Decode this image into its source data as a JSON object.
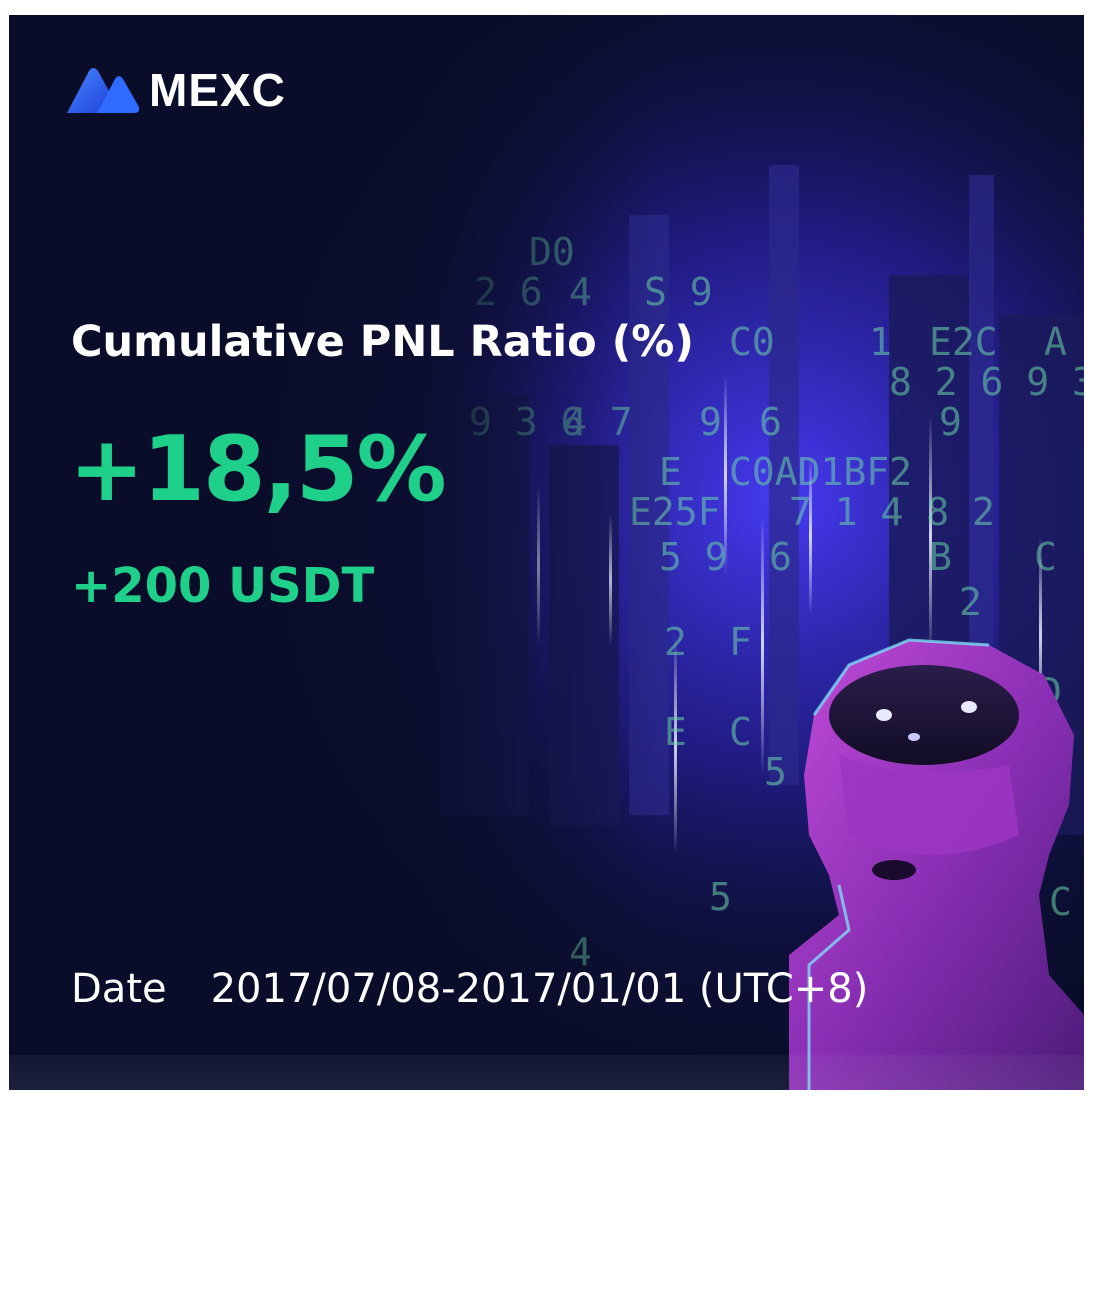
{
  "brand": {
    "name": "MEXC",
    "logo_icon": "mexc-mountain-logo",
    "logo_gradient": [
      "#2f6bff",
      "#1c3fd6"
    ]
  },
  "pnl": {
    "label": "Cumulative PNL Ratio (%)",
    "ratio": "+18,5%",
    "amount": "+200 USDT",
    "color": "#1fd08a"
  },
  "date": {
    "label": "Date",
    "value": "2017/07/08-2017/01/01 (UTC+8)"
  },
  "colors": {
    "background": "#0a0d2a",
    "accent_blue": "#3a3cff",
    "accent_purple": "#9c2fc7"
  },
  "illustration": {
    "icon": "robot-matrix-illustration",
    "code_glyphs": [
      "D",
      "0",
      "2",
      "4",
      "S",
      "9",
      "C",
      "0",
      "1",
      "E",
      "2",
      "C",
      "A",
      "8",
      "2",
      "6",
      "9",
      "3",
      "7",
      "9",
      "3",
      "6",
      "4",
      "7",
      "9",
      "6",
      "A",
      "8",
      "9",
      "C",
      "0",
      "A",
      "D",
      "1",
      "B",
      "F",
      "2",
      "E",
      "2",
      "5",
      "F",
      "7",
      "1",
      "4",
      "8",
      "2",
      "5",
      "9",
      "6",
      "B",
      "C",
      "F",
      "2",
      "F",
      "E",
      "C",
      "D",
      "5",
      "3",
      "4",
      "6"
    ]
  }
}
